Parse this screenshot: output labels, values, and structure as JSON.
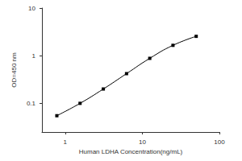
{
  "chart_data": {
    "type": "line",
    "xlabel": "Human LDHA Concentration(ng/mL)",
    "ylabel": "OD=450 nm",
    "x": [
      0.78,
      1.56,
      3.125,
      6.25,
      12.5,
      25,
      50
    ],
    "values": [
      0.055,
      0.1,
      0.2,
      0.42,
      0.88,
      1.65,
      2.55
    ],
    "color": "#000000",
    "marker": "square",
    "line_style": "solid",
    "log": true,
    "grid": false,
    "xlim": [
      0.5,
      100
    ],
    "xticks": [
      1,
      10,
      100
    ],
    "ylim": [
      0.025,
      10
    ],
    "yticks": [
      0.1,
      1,
      10
    ]
  }
}
